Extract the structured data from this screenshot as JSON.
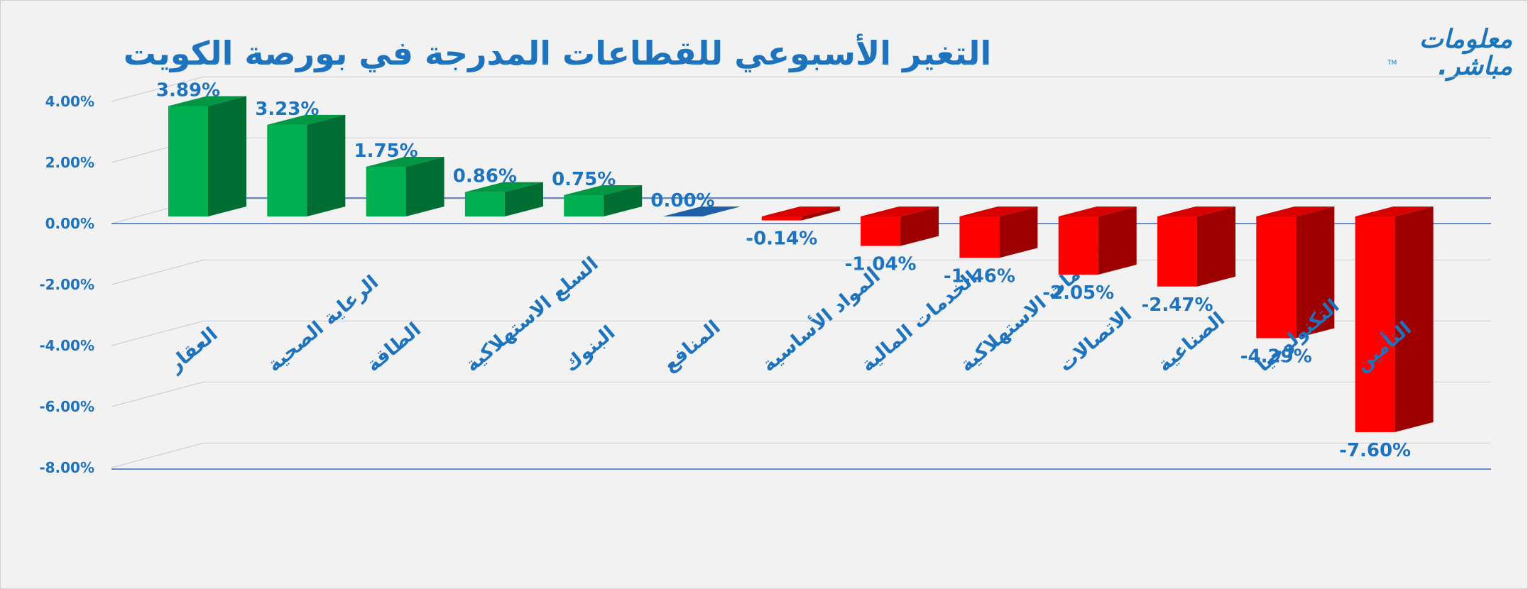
{
  "chart_data": {
    "type": "bar",
    "title": "التغير الأسبوعي للقطاعات المدرجة في بورصة الكويت",
    "categories": [
      "العقار",
      "الرعاية الصحية",
      "الطاقة",
      "السلع الاستهلاكية",
      "البنوك",
      "المنافع",
      "المواد الأساسية",
      "الخدمات المالية",
      "الخدمات الاستهلاكية",
      "الاتصالات",
      "الصناعية",
      "التكنولوجيا",
      "التأمين"
    ],
    "values": [
      3.89,
      3.23,
      1.75,
      0.86,
      0.75,
      0.0,
      -0.14,
      -1.04,
      -1.46,
      -2.05,
      -2.47,
      -4.29,
      -7.6
    ],
    "value_labels": [
      "3.89%",
      "3.23%",
      "1.75%",
      "0.86%",
      "0.75%",
      "0.00%",
      "-0.14%",
      "-1.04%",
      "-1.46%",
      "-2.05%",
      "-2.47%",
      "-4.29%",
      "-7.60%"
    ],
    "yticks": [
      4,
      2,
      0,
      -2,
      -4,
      -6,
      -8
    ],
    "ytick_labels": [
      "4.00%",
      "2.00%",
      "0.00%",
      "-2.00%",
      "-4.00%",
      "-6.00%",
      "-8.00%"
    ],
    "ylim": [
      -8,
      4
    ],
    "grid": true,
    "colors": {
      "positive": "#00b050",
      "negative": "#ff0000",
      "zero": "#1f5fa6",
      "text": "#1e73be"
    }
  },
  "logo": {
    "line1": "معلومات",
    "line2": "مباشر.",
    "tm": "TM"
  }
}
